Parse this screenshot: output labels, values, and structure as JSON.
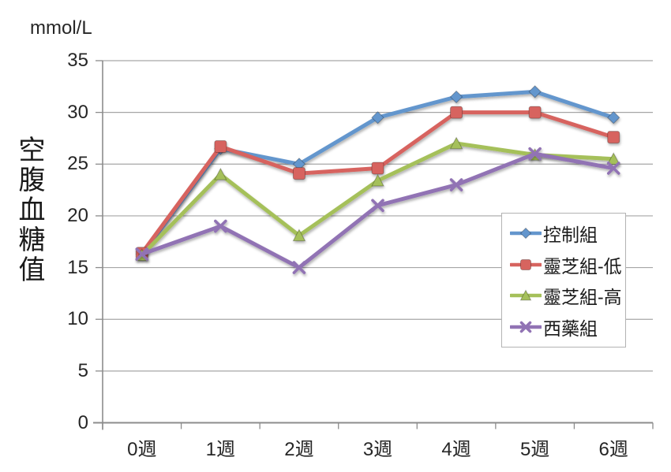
{
  "chart_data": {
    "type": "line",
    "title": "",
    "unit_label": "mmol/L",
    "ylabel": "空腹血糖值",
    "xlabel": "",
    "categories": [
      "0週",
      "1週",
      "2週",
      "3週",
      "4週",
      "5週",
      "6週"
    ],
    "yticks": [
      0,
      5,
      10,
      15,
      20,
      25,
      30,
      35
    ],
    "ylim": [
      0,
      35
    ],
    "grid": true,
    "legend_position": "inside-right-middle",
    "series": [
      {
        "name": "控制組",
        "marker": "diamond",
        "color": "#6496CD",
        "values": [
          16.3,
          26.5,
          25.0,
          29.5,
          31.5,
          32.0,
          29.5
        ]
      },
      {
        "name": "靈芝組-低",
        "marker": "square",
        "color": "#D7645F",
        "values": [
          16.4,
          26.7,
          24.1,
          24.6,
          30.0,
          30.0,
          27.6
        ]
      },
      {
        "name": "靈芝組-高",
        "marker": "triangle",
        "color": "#A5C05A",
        "values": [
          16.2,
          24.0,
          18.1,
          23.4,
          27.0,
          25.9,
          25.5
        ]
      },
      {
        "name": "西藥組",
        "marker": "x",
        "color": "#9173B4",
        "values": [
          16.3,
          19.0,
          15.0,
          21.0,
          23.0,
          26.0,
          24.6
        ]
      }
    ]
  },
  "colors": {
    "axis": "#8c8c8c",
    "gridline": "#a6a6a6",
    "text": "#262626",
    "legend_border": "#b3b3b3",
    "background": "#ffffff"
  }
}
